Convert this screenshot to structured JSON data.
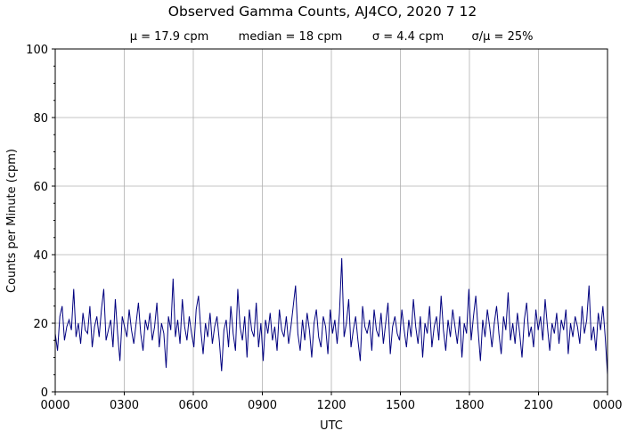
{
  "chart_data": {
    "type": "line",
    "title": "Observed Gamma Counts, AJ4CO, 2020 7 12",
    "subtitle": [
      "μ = 17.9 cpm",
      "median = 18 cpm",
      "σ = 4.4 cpm",
      "σ/μ = 25%"
    ],
    "xlabel": "UTC",
    "ylabel": "Counts per Minute (cpm)",
    "ylim": [
      0,
      100
    ],
    "yticks": [
      "0",
      "20",
      "40",
      "60",
      "80",
      "100"
    ],
    "xticks": [
      "0000",
      "0300",
      "0600",
      "0900",
      "1200",
      "1500",
      "1800",
      "2100",
      "0000"
    ],
    "grid": true,
    "line_color": "#00007f",
    "grid_color": "#b0b0b0",
    "series": [
      {
        "values": [
          17,
          12,
          22,
          25,
          15,
          19,
          21,
          18,
          30,
          16,
          20,
          14,
          23,
          18,
          17,
          25,
          13,
          19,
          22,
          16,
          24,
          30,
          15,
          18,
          21,
          13,
          27,
          17,
          9,
          22,
          19,
          16,
          24,
          18,
          14,
          20,
          26,
          17,
          12,
          21,
          18,
          23,
          15,
          19,
          26,
          13,
          20,
          17,
          7,
          22,
          18,
          33,
          16,
          21,
          14,
          27,
          19,
          15,
          22,
          17,
          13,
          24,
          28,
          18,
          11,
          20,
          16,
          23,
          14,
          19,
          22,
          15,
          6,
          18,
          21,
          13,
          25,
          17,
          12,
          30,
          19,
          15,
          22,
          10,
          24,
          18,
          16,
          26,
          13,
          20,
          9,
          21,
          17,
          23,
          15,
          19,
          12,
          24,
          18,
          16,
          22,
          14,
          19,
          25,
          31,
          17,
          12,
          21,
          15,
          23,
          18,
          10,
          20,
          24,
          16,
          13,
          22,
          19,
          11,
          24,
          17,
          21,
          14,
          23,
          39,
          16,
          20,
          27,
          13,
          18,
          22,
          15,
          9,
          25,
          19,
          17,
          21,
          12,
          24,
          18,
          16,
          23,
          14,
          20,
          26,
          11,
          19,
          22,
          17,
          15,
          24,
          18,
          13,
          21,
          16,
          27,
          19,
          14,
          22,
          10,
          20,
          17,
          25,
          13,
          19,
          22,
          15,
          28,
          18,
          12,
          21,
          16,
          24,
          19,
          14,
          22,
          10,
          20,
          17,
          30,
          15,
          22,
          28,
          18,
          9,
          21,
          16,
          24,
          19,
          13,
          20,
          25,
          17,
          11,
          22,
          18,
          29,
          15,
          20,
          14,
          23,
          17,
          10,
          21,
          26,
          16,
          19,
          13,
          24,
          18,
          22,
          15,
          27,
          19,
          12,
          20,
          17,
          23,
          14,
          21,
          18,
          24,
          11,
          20,
          16,
          22,
          19,
          14,
          25,
          17,
          21,
          31,
          15,
          19,
          12,
          23,
          18,
          25,
          16,
          5
        ]
      }
    ]
  }
}
